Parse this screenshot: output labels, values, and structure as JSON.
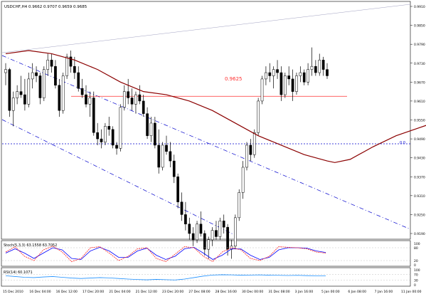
{
  "header": {
    "symbol_line": "USDCHF,H4  0.9662 0.9707 0.9659 0.9685"
  },
  "main_price_level_label": "0.9625",
  "fib_label": "0.0",
  "stoch_label": "Stoch(5,3,3) 63.1558 63.7052",
  "rsi_label": "RSI(14) 60.1071",
  "colors": {
    "candle": "#000000",
    "ma": "#8b0000",
    "channel": "#0000cd",
    "hline": "#ff3030",
    "stoch_main": "#ff2020",
    "stoch_signal": "#0000ff",
    "rsi": "#1e90ff"
  },
  "chart_data": {
    "type": "candlestick",
    "price_axis_labels": [
      "0.9910",
      "0.9850",
      "0.9790",
      "0.9730",
      "0.9670",
      "0.9610",
      "0.9550",
      "0.9490",
      "0.9430",
      "0.9370",
      "0.9310",
      "0.9250",
      "0.9190"
    ],
    "time_axis_labels": [
      "15 Dec 2010",
      "16 Dec 04:00",
      "16 Dec 12:00",
      "17 Dec 20:00",
      "21 Dec 04:00",
      "21 Dec 12:00",
      "23 Dec 20:00",
      "27 Dec 08:00",
      "28 Dec 16:00",
      "30 Dec 00:00",
      "31 Dec 08:00",
      "3 Jan 16:00",
      "5 Jan 00:00",
      "6 Jan 08:00",
      "7 Jan 16:00",
      "11 Jan 00:00"
    ],
    "stoch_axis_labels": [
      "100",
      "80",
      "20",
      "0"
    ],
    "rsi_axis_labels": [
      "100",
      "70",
      "30",
      "0"
    ],
    "horizontal_level": 0.9625,
    "candles": [
      [
        0.97,
        0.973,
        0.966,
        0.971
      ],
      [
        0.971,
        0.9715,
        0.956,
        0.958
      ],
      [
        0.958,
        0.964,
        0.953,
        0.962
      ],
      [
        0.962,
        0.966,
        0.96,
        0.964
      ],
      [
        0.964,
        0.969,
        0.962,
        0.963
      ],
      [
        0.963,
        0.968,
        0.958,
        0.96
      ],
      [
        0.96,
        0.97,
        0.959,
        0.968
      ],
      [
        0.968,
        0.973,
        0.965,
        0.97
      ],
      [
        0.97,
        0.972,
        0.967,
        0.969
      ],
      [
        0.969,
        0.97,
        0.96,
        0.962
      ],
      [
        0.962,
        0.972,
        0.961,
        0.971
      ],
      [
        0.971,
        0.976,
        0.969,
        0.974
      ],
      [
        0.974,
        0.976,
        0.97,
        0.972
      ],
      [
        0.972,
        0.974,
        0.965,
        0.966
      ],
      [
        0.966,
        0.968,
        0.956,
        0.958
      ],
      [
        0.958,
        0.97,
        0.957,
        0.969
      ],
      [
        0.969,
        0.976,
        0.968,
        0.975
      ],
      [
        0.975,
        0.977,
        0.97,
        0.972
      ],
      [
        0.972,
        0.975,
        0.968,
        0.97
      ],
      [
        0.97,
        0.972,
        0.964,
        0.965
      ],
      [
        0.965,
        0.968,
        0.962,
        0.963
      ],
      [
        0.963,
        0.966,
        0.959,
        0.96
      ],
      [
        0.96,
        0.964,
        0.956,
        0.962
      ],
      [
        0.962,
        0.964,
        0.95,
        0.951
      ],
      [
        0.951,
        0.954,
        0.947,
        0.949
      ],
      [
        0.949,
        0.952,
        0.946,
        0.948
      ],
      [
        0.948,
        0.954,
        0.947,
        0.953
      ],
      [
        0.953,
        0.956,
        0.95,
        0.952
      ],
      [
        0.952,
        0.953,
        0.946,
        0.947
      ],
      [
        0.947,
        0.948,
        0.944,
        0.946
      ],
      [
        0.946,
        0.96,
        0.945,
        0.959
      ],
      [
        0.959,
        0.966,
        0.958,
        0.964
      ],
      [
        0.964,
        0.968,
        0.96,
        0.962
      ],
      [
        0.962,
        0.965,
        0.958,
        0.96
      ],
      [
        0.96,
        0.964,
        0.957,
        0.963
      ],
      [
        0.963,
        0.966,
        0.96,
        0.961
      ],
      [
        0.961,
        0.963,
        0.956,
        0.957
      ],
      [
        0.957,
        0.959,
        0.949,
        0.95
      ],
      [
        0.95,
        0.956,
        0.948,
        0.954
      ],
      [
        0.954,
        0.956,
        0.946,
        0.947
      ],
      [
        0.947,
        0.952,
        0.938,
        0.94
      ],
      [
        0.94,
        0.948,
        0.939,
        0.947
      ],
      [
        0.947,
        0.95,
        0.944,
        0.945
      ],
      [
        0.945,
        0.948,
        0.94,
        0.942
      ],
      [
        0.942,
        0.944,
        0.935,
        0.937
      ],
      [
        0.937,
        0.938,
        0.927,
        0.929
      ],
      [
        0.929,
        0.932,
        0.923,
        0.925
      ],
      [
        0.925,
        0.929,
        0.92,
        0.922
      ],
      [
        0.922,
        0.924,
        0.917,
        0.919
      ],
      [
        0.919,
        0.921,
        0.915,
        0.917
      ],
      [
        0.917,
        0.923,
        0.916,
        0.922
      ],
      [
        0.922,
        0.926,
        0.918,
        0.919
      ],
      [
        0.919,
        0.92,
        0.912,
        0.914
      ],
      [
        0.914,
        0.918,
        0.911,
        0.917
      ],
      [
        0.917,
        0.921,
        0.915,
        0.92
      ],
      [
        0.92,
        0.923,
        0.917,
        0.918
      ],
      [
        0.918,
        0.924,
        0.917,
        0.923
      ],
      [
        0.923,
        0.925,
        0.919,
        0.921
      ],
      [
        0.921,
        0.922,
        0.912,
        0.914
      ],
      [
        0.914,
        0.917,
        0.911,
        0.915
      ],
      [
        0.915,
        0.925,
        0.914,
        0.924
      ],
      [
        0.924,
        0.933,
        0.923,
        0.932
      ],
      [
        0.932,
        0.942,
        0.93,
        0.94
      ],
      [
        0.94,
        0.948,
        0.939,
        0.947
      ],
      [
        0.947,
        0.949,
        0.942,
        0.944
      ],
      [
        0.944,
        0.952,
        0.943,
        0.951
      ],
      [
        0.951,
        0.962,
        0.95,
        0.961
      ],
      [
        0.961,
        0.969,
        0.96,
        0.968
      ],
      [
        0.968,
        0.972,
        0.966,
        0.97
      ],
      [
        0.97,
        0.973,
        0.967,
        0.969
      ],
      [
        0.969,
        0.972,
        0.965,
        0.971
      ],
      [
        0.971,
        0.974,
        0.968,
        0.97
      ],
      [
        0.97,
        0.972,
        0.961,
        0.963
      ],
      [
        0.963,
        0.97,
        0.962,
        0.969
      ],
      [
        0.969,
        0.972,
        0.966,
        0.968
      ],
      [
        0.968,
        0.971,
        0.961,
        0.964
      ],
      [
        0.964,
        0.97,
        0.963,
        0.969
      ],
      [
        0.969,
        0.972,
        0.967,
        0.97
      ],
      [
        0.97,
        0.971,
        0.966,
        0.967
      ],
      [
        0.967,
        0.973,
        0.966,
        0.971
      ],
      [
        0.971,
        0.978,
        0.969,
        0.972
      ],
      [
        0.972,
        0.974,
        0.969,
        0.97
      ],
      [
        0.97,
        0.976,
        0.969,
        0.974
      ],
      [
        0.974,
        0.975,
        0.969,
        0.971
      ],
      [
        0.971,
        0.973,
        0.968,
        0.969
      ]
    ],
    "ma_points": [
      [
        0,
        0.976
      ],
      [
        6,
        0.977
      ],
      [
        12,
        0.976
      ],
      [
        18,
        0.974
      ],
      [
        24,
        0.971
      ],
      [
        30,
        0.967
      ],
      [
        36,
        0.964
      ],
      [
        42,
        0.963
      ],
      [
        48,
        0.961
      ],
      [
        54,
        0.958
      ],
      [
        60,
        0.954
      ],
      [
        66,
        0.95
      ],
      [
        72,
        0.947
      ],
      [
        78,
        0.944
      ],
      [
        84,
        0.942
      ],
      [
        86,
        0.9415
      ],
      [
        90,
        0.9425
      ],
      [
        96,
        0.9465
      ],
      [
        102,
        0.95
      ],
      [
        108,
        0.9525
      ],
      [
        114,
        0.955
      ],
      [
        120,
        0.958
      ]
    ],
    "stoch_main": [
      60,
      85,
      40,
      20,
      70,
      88,
      60,
      15,
      30,
      80,
      85,
      55,
      20,
      40,
      75,
      80,
      30,
      15,
      50,
      85,
      80,
      40,
      15,
      60,
      80,
      70,
      30,
      20,
      40,
      85,
      82,
      80,
      75,
      60,
      55
    ],
    "stoch_signal": [
      55,
      75,
      55,
      30,
      55,
      80,
      70,
      30,
      25,
      65,
      82,
      65,
      35,
      35,
      65,
      78,
      45,
      25,
      40,
      75,
      82,
      55,
      25,
      45,
      75,
      74,
      45,
      25,
      35,
      70,
      80,
      80,
      78,
      65,
      58
    ],
    "rsi_values": [
      60,
      55,
      50,
      48,
      52,
      55,
      50,
      45,
      42,
      45,
      48,
      46,
      42,
      38,
      35,
      33,
      36,
      34,
      32,
      38,
      48,
      58,
      65,
      67,
      66,
      64,
      65,
      66,
      64,
      63,
      62,
      63,
      61,
      60,
      60
    ]
  }
}
